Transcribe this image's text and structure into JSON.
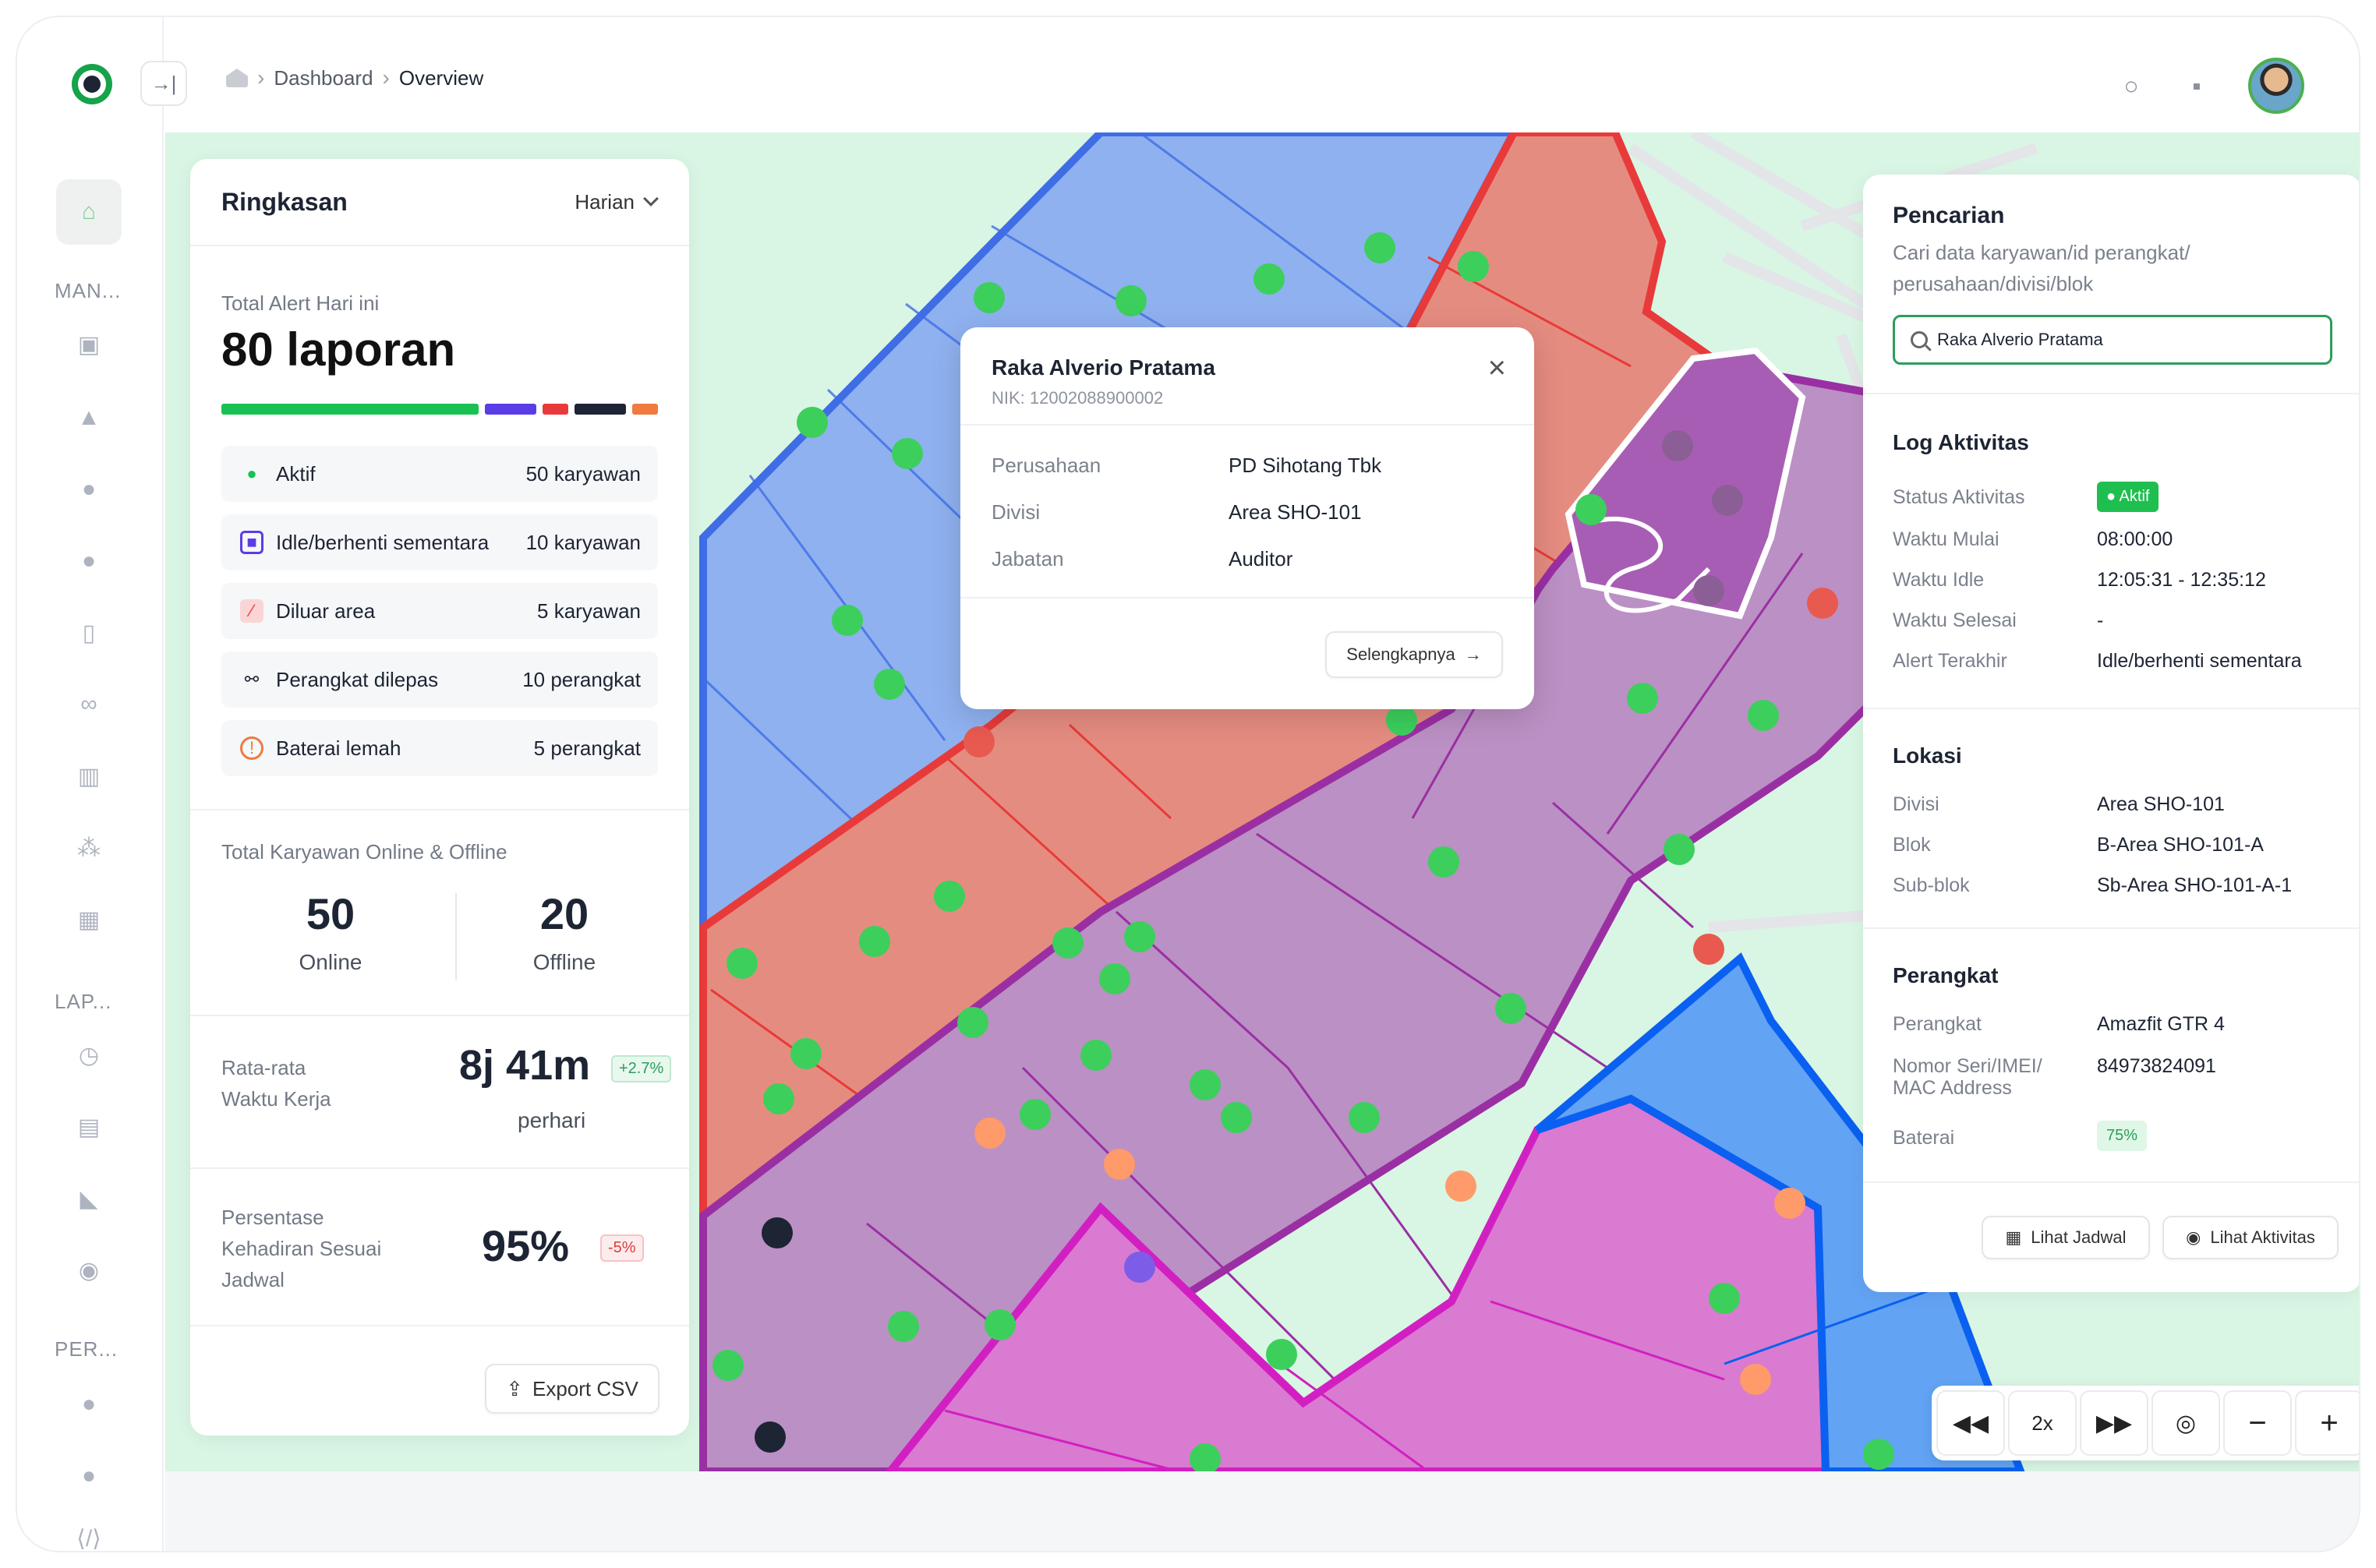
{
  "breadcrumb": {
    "items": [
      "Dashboard",
      "Overview"
    ]
  },
  "sidebar": {
    "sections": [
      "MAN...",
      "LAP...",
      "PER..."
    ],
    "icons": [
      "home-icon",
      "briefcase-icon",
      "bell-icon",
      "user-check-icon",
      "users-icon",
      "watch-icon",
      "link-icon",
      "barcode-icon",
      "network-icon",
      "calendar-icon",
      "clock-icon",
      "file-icon",
      "chart-icon",
      "location-icon",
      "user-settings-icon",
      "user-icon",
      "code-icon"
    ]
  },
  "summary": {
    "title": "Ringkasan",
    "period": "Harian",
    "alert_label": "Total Alert Hari ini",
    "alert_value": "80 laporan",
    "bar": [
      {
        "value": 50,
        "color": "#19c153"
      },
      {
        "value": 10,
        "color": "#5a3de6"
      },
      {
        "value": 5,
        "color": "#e83a3a"
      },
      {
        "value": 10,
        "color": "#1d2433"
      },
      {
        "value": 5,
        "color": "#f07a3f"
      }
    ],
    "stats": [
      {
        "label": "Aktif",
        "value": "50 karyawan",
        "icon": "user-active-icon",
        "color": "#19c153"
      },
      {
        "label": "Idle/berhenti sementara",
        "value": "10 karyawan",
        "icon": "idle-icon",
        "color": "#5a3de6"
      },
      {
        "label": "Diluar area",
        "value": "5 karyawan",
        "icon": "out-of-area-icon",
        "color": "#e83a3a"
      },
      {
        "label": "Perangkat dilepas",
        "value": "10 perangkat",
        "icon": "unlink-icon",
        "color": "#1d2433"
      },
      {
        "label": "Baterai lemah",
        "value": "5 perangkat",
        "icon": "battery-low-icon",
        "color": "#f07a3f"
      }
    ],
    "online_label": "Total Karyawan Online & Offline",
    "online": "50",
    "online_text": "Online",
    "offline": "20",
    "offline_text": "Offline",
    "work_label_1": "Rata-rata",
    "work_label_2": "Waktu Kerja",
    "work_value": "8j 41m",
    "work_change": "+2.7%",
    "work_unit": "perhari",
    "att_label_1": "Persentase",
    "att_label_2": "Kehadiran Sesuai",
    "att_label_3": "Jadwal",
    "att_value": "95%",
    "att_change": "-5%",
    "export": "Export CSV"
  },
  "popup": {
    "name": "Raka Alverio Pratama",
    "nik": "NIK: 12002088900002",
    "rows": [
      {
        "k": "Perusahaan",
        "v": "PD Sihotang Tbk"
      },
      {
        "k": "Divisi",
        "v": "Area SHO-101"
      },
      {
        "k": "Jabatan",
        "v": "Auditor"
      }
    ],
    "more": "Selengkapnya"
  },
  "search_panel": {
    "title": "Pencarian",
    "desc_1": "Cari data karyawan/id perangkat/",
    "desc_2": "perusahaan/divisi/blok",
    "query": "Raka Alverio Pratama",
    "log_title": "Log Aktivitas",
    "log": [
      {
        "k": "Status Aktivitas",
        "v": "Aktif"
      },
      {
        "k": "Waktu Mulai",
        "v": "08:00:00"
      },
      {
        "k": "Waktu Idle",
        "v": "12:05:31 - 12:35:12"
      },
      {
        "k": "Waktu Selesai",
        "v": "-"
      },
      {
        "k": "Alert Terakhir",
        "v": "Idle/berhenti sementara"
      }
    ],
    "loc_title": "Lokasi",
    "loc": [
      {
        "k": "Divisi",
        "v": "Area SHO-101"
      },
      {
        "k": "Blok",
        "v": "B-Area SHO-101-A"
      },
      {
        "k": "Sub-blok",
        "v": "Sb-Area SHO-101-A-1"
      }
    ],
    "dev_title": "Perangkat",
    "dev": [
      {
        "k": "Perangkat",
        "v": "Amazfit GTR 4"
      },
      {
        "k": "Nomor Seri/IMEI/",
        "k2": "MAC Address",
        "v": "84973824091"
      },
      {
        "k": "Baterai",
        "v": "75%"
      }
    ],
    "btn_schedule": "Lihat Jadwal",
    "btn_activity": "Lihat Aktivitas"
  },
  "map_controls": {
    "speed": "2x"
  },
  "map_colors": {
    "blue": "#5b8de8",
    "red": "#e8695e",
    "purple": "#b38cc0",
    "magenta": "#d86fcf",
    "dark_blue": "#5aa0f0",
    "green_bg": "#d9f5e4"
  }
}
